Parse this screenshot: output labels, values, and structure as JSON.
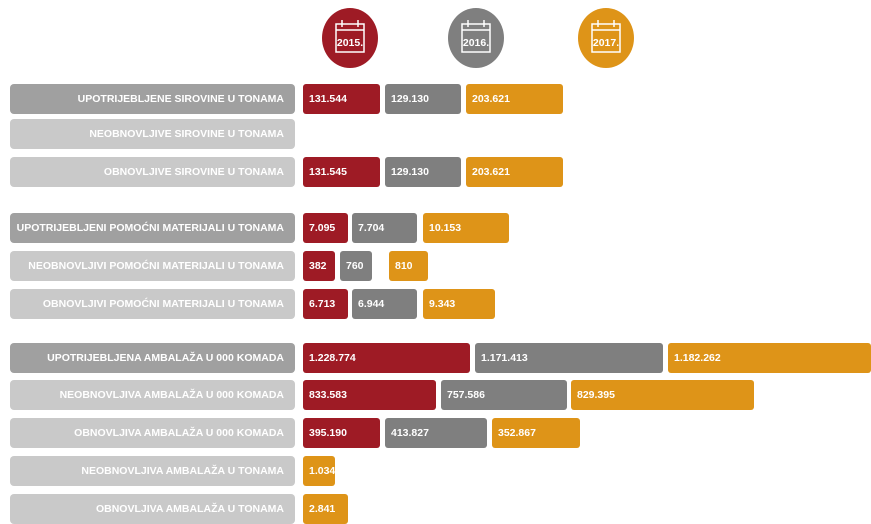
{
  "years": [
    {
      "label": "2015.",
      "color": "#9e1b25"
    },
    {
      "label": "2016.",
      "color": "#7f7f7f"
    },
    {
      "label": "2017.",
      "color": "#de9418"
    }
  ],
  "rows": [
    {
      "label": "UPOTRIJEBLJENE SIROVINE U TONAMA",
      "values": [
        "131.544",
        "129.130",
        "203.621"
      ]
    },
    {
      "label": "NEOBNOVLJIVE SIROVINE U TONAMA",
      "values": [
        null,
        null,
        null
      ]
    },
    {
      "label": "OBNOVLJIVE SIROVINE U TONAMA",
      "values": [
        "131.545",
        "129.130",
        "203.621"
      ]
    },
    {
      "label": "UPOTRIJEBLJENI POMOĆNI MATERIJALI U TONAMA",
      "values": [
        "7.095",
        "7.704",
        "10.153"
      ]
    },
    {
      "label": "NEOBNOVLJIVI POMOĆNI MATERIJALI U TONAMA",
      "values": [
        "382",
        "760",
        "810"
      ]
    },
    {
      "label": "OBNOVLJIVI POMOĆNI MATERIJALI U TONAMA",
      "values": [
        "6.713",
        "6.944",
        "9.343"
      ]
    },
    {
      "label": "UPOTRIJEBLJENA AMBALAŽA U 000 KOMADA",
      "values": [
        "1.228.774",
        "1.171.413",
        "1.182.262"
      ]
    },
    {
      "label": "NEOBNOVLJIVA AMBALAŽA U 000 KOMADA",
      "values": [
        "833.583",
        "757.586",
        "829.395"
      ]
    },
    {
      "label": "OBNOVLJIVA AMBALAŽA U 000 KOMADA",
      "values": [
        "395.190",
        "413.827",
        "352.867"
      ]
    },
    {
      "label": "NEOBNOVLJIVA AMBALAŽA U TONAMA",
      "values": [
        null,
        null,
        "1.034"
      ]
    },
    {
      "label": "OBNOVLJIVA AMBALAŽA U TONAMA",
      "values": [
        null,
        null,
        "2.841"
      ]
    }
  ]
}
